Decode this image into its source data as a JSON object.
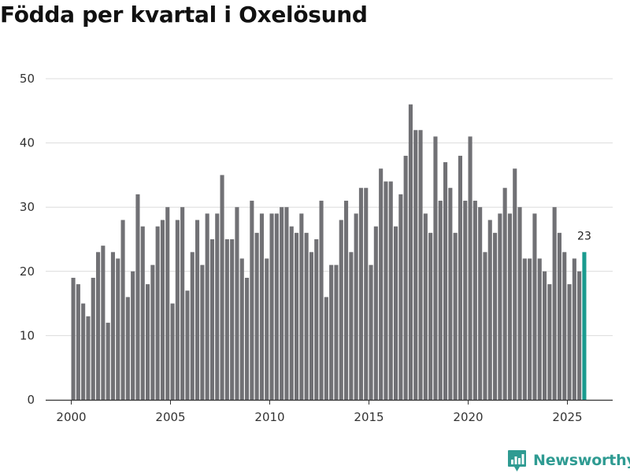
{
  "chart_data": {
    "type": "bar",
    "title": "Födda per kvartal i Oxelösund",
    "xlabel": "",
    "ylabel": "",
    "ylim": [
      0,
      50
    ],
    "y_ticks": [
      0,
      10,
      20,
      30,
      40,
      50
    ],
    "x_ticks": [
      2000,
      2005,
      2010,
      2015,
      2020,
      2025
    ],
    "x_start": 2000,
    "periods_per_year": 4,
    "values": [
      19,
      18,
      15,
      13,
      19,
      23,
      24,
      12,
      23,
      22,
      28,
      16,
      20,
      32,
      27,
      18,
      21,
      27,
      28,
      30,
      15,
      28,
      30,
      17,
      23,
      28,
      21,
      29,
      25,
      29,
      35,
      25,
      25,
      30,
      22,
      19,
      31,
      26,
      29,
      22,
      29,
      29,
      30,
      30,
      27,
      26,
      29,
      26,
      23,
      25,
      31,
      16,
      21,
      21,
      28,
      31,
      23,
      29,
      33,
      33,
      21,
      27,
      36,
      34,
      34,
      27,
      32,
      38,
      46,
      42,
      42,
      29,
      26,
      41,
      31,
      37,
      33,
      26,
      38,
      31,
      41,
      31,
      30,
      23,
      28,
      26,
      29,
      33,
      29,
      36,
      30,
      22,
      22,
      29,
      22,
      20,
      18,
      30,
      26,
      23,
      18,
      22,
      20,
      23
    ],
    "bar_color": "#717175",
    "highlight_color": "#1a9b8f",
    "highlight_label": "23"
  },
  "brand": {
    "name": "Newsworthy",
    "icon": "newsworthy-logo-icon",
    "color": "#2f9b92"
  }
}
